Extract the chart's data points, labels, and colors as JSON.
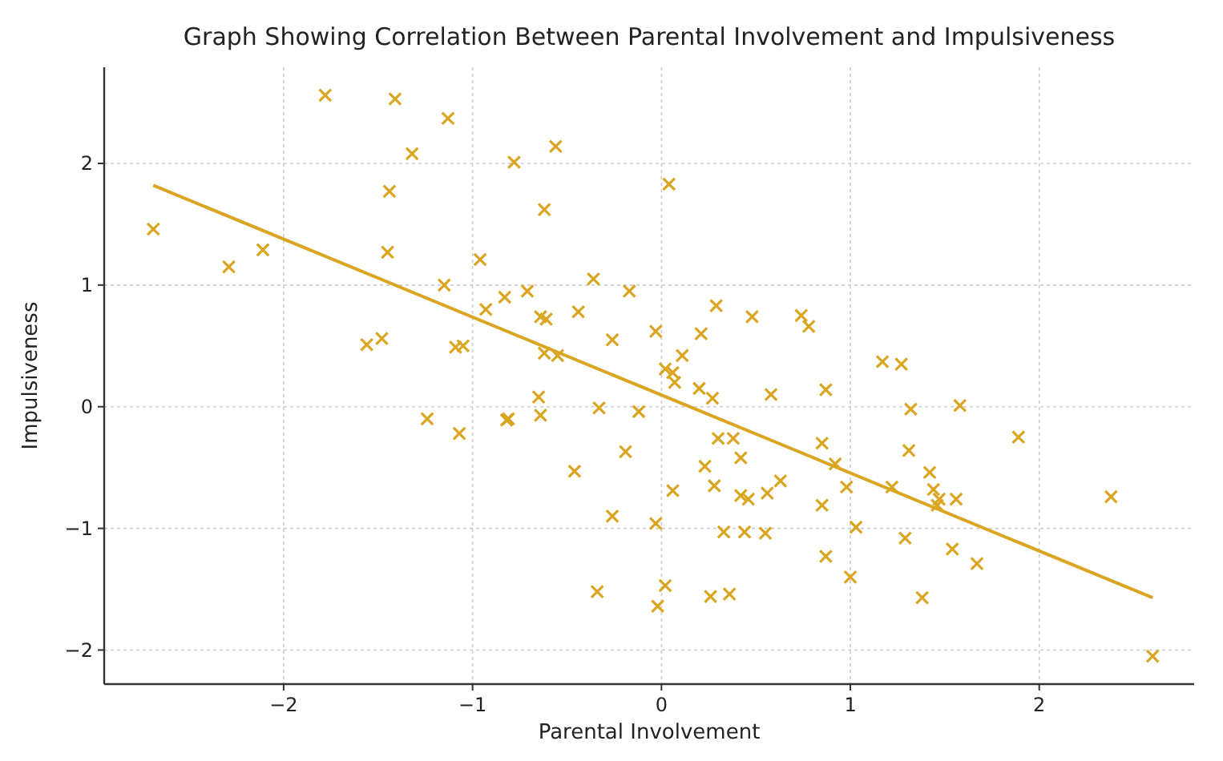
{
  "chart_data": {
    "type": "scatter",
    "title": "Graph Showing Correlation Between Parental Involvement and Impulsiveness",
    "xlabel": "Parental Involvement",
    "ylabel": "Impulsiveness",
    "xlim": [
      -2.95,
      2.82
    ],
    "ylim": [
      -2.28,
      2.79
    ],
    "xticks": [
      {
        "value": -2,
        "label": "−2"
      },
      {
        "value": -1,
        "label": "−1"
      },
      0,
      1,
      2
    ],
    "yticks": [
      {
        "value": -2,
        "label": "−2"
      },
      {
        "value": -1,
        "label": "−1"
      },
      0,
      1,
      2
    ],
    "grid": true,
    "series": [
      {
        "color": "#daa520",
        "marker": "cross",
        "x": [
          -2.69,
          -2.29,
          -2.11,
          -1.78,
          -1.41,
          -1.13,
          -1.32,
          -1.44,
          -1.45,
          -1.15,
          -1.56,
          -1.48,
          -1.09,
          -1.05,
          -1.24,
          -1.07,
          -0.96,
          -0.93,
          -0.83,
          -0.78,
          -0.71,
          -0.56,
          -0.62,
          -0.64,
          -0.61,
          -0.65,
          -0.64,
          -0.62,
          -0.55,
          -0.82,
          -0.81,
          -0.46,
          -0.44,
          -0.36,
          -0.33,
          -0.34,
          -0.26,
          -0.26,
          -0.19,
          -0.17,
          -0.12,
          -0.03,
          -0.03,
          -0.02,
          0.02,
          0.02,
          0.06,
          0.04,
          0.07,
          0.11,
          0.06,
          0.2,
          0.27,
          0.58,
          0.87,
          0.29,
          0.21,
          0.48,
          0.74,
          0.78,
          0.3,
          0.38,
          0.42,
          0.23,
          0.28,
          0.42,
          0.46,
          0.56,
          0.63,
          0.33,
          0.44,
          0.55,
          0.26,
          0.36,
          0.85,
          0.85,
          0.87,
          1.17,
          1.27,
          1.32,
          1.58,
          1.89,
          0.92,
          1.31,
          1.42,
          0.98,
          1.22,
          1.44,
          1.47,
          1.46,
          1.56,
          2.38,
          1.03,
          1.29,
          1.54,
          1.67,
          1.0,
          1.38,
          2.6
        ],
        "values": [
          1.46,
          1.15,
          1.29,
          2.56,
          2.53,
          2.37,
          2.08,
          1.77,
          1.27,
          1.0,
          0.51,
          0.56,
          0.49,
          0.5,
          -0.1,
          -0.22,
          1.21,
          0.8,
          0.9,
          2.01,
          0.95,
          2.14,
          1.62,
          0.74,
          0.72,
          0.08,
          -0.07,
          0.44,
          0.42,
          -0.11,
          -0.1,
          -0.53,
          0.78,
          1.05,
          -0.01,
          -1.52,
          0.55,
          -0.9,
          -0.37,
          0.95,
          -0.04,
          0.62,
          -0.96,
          -1.64,
          -1.47,
          0.31,
          0.28,
          1.83,
          0.2,
          0.42,
          -0.69,
          0.15,
          0.07,
          0.1,
          0.14,
          0.83,
          0.6,
          0.74,
          0.75,
          0.66,
          -0.26,
          -0.26,
          -0.42,
          -0.49,
          -0.65,
          -0.73,
          -0.76,
          -0.71,
          -0.61,
          -1.03,
          -1.03,
          -1.04,
          -1.56,
          -1.54,
          -0.3,
          -0.81,
          -1.23,
          0.37,
          0.35,
          -0.02,
          0.01,
          -0.25,
          -0.47,
          -0.36,
          -0.54,
          -0.66,
          -0.66,
          -0.68,
          -0.76,
          -0.81,
          -0.76,
          -0.74,
          -0.99,
          -1.08,
          -1.17,
          -1.29,
          -1.4,
          -1.57,
          -2.05
        ]
      },
      {
        "type": "line",
        "color": "#daa520",
        "x": [
          -2.69,
          2.6
        ],
        "values": [
          1.82,
          -1.57
        ]
      }
    ]
  }
}
